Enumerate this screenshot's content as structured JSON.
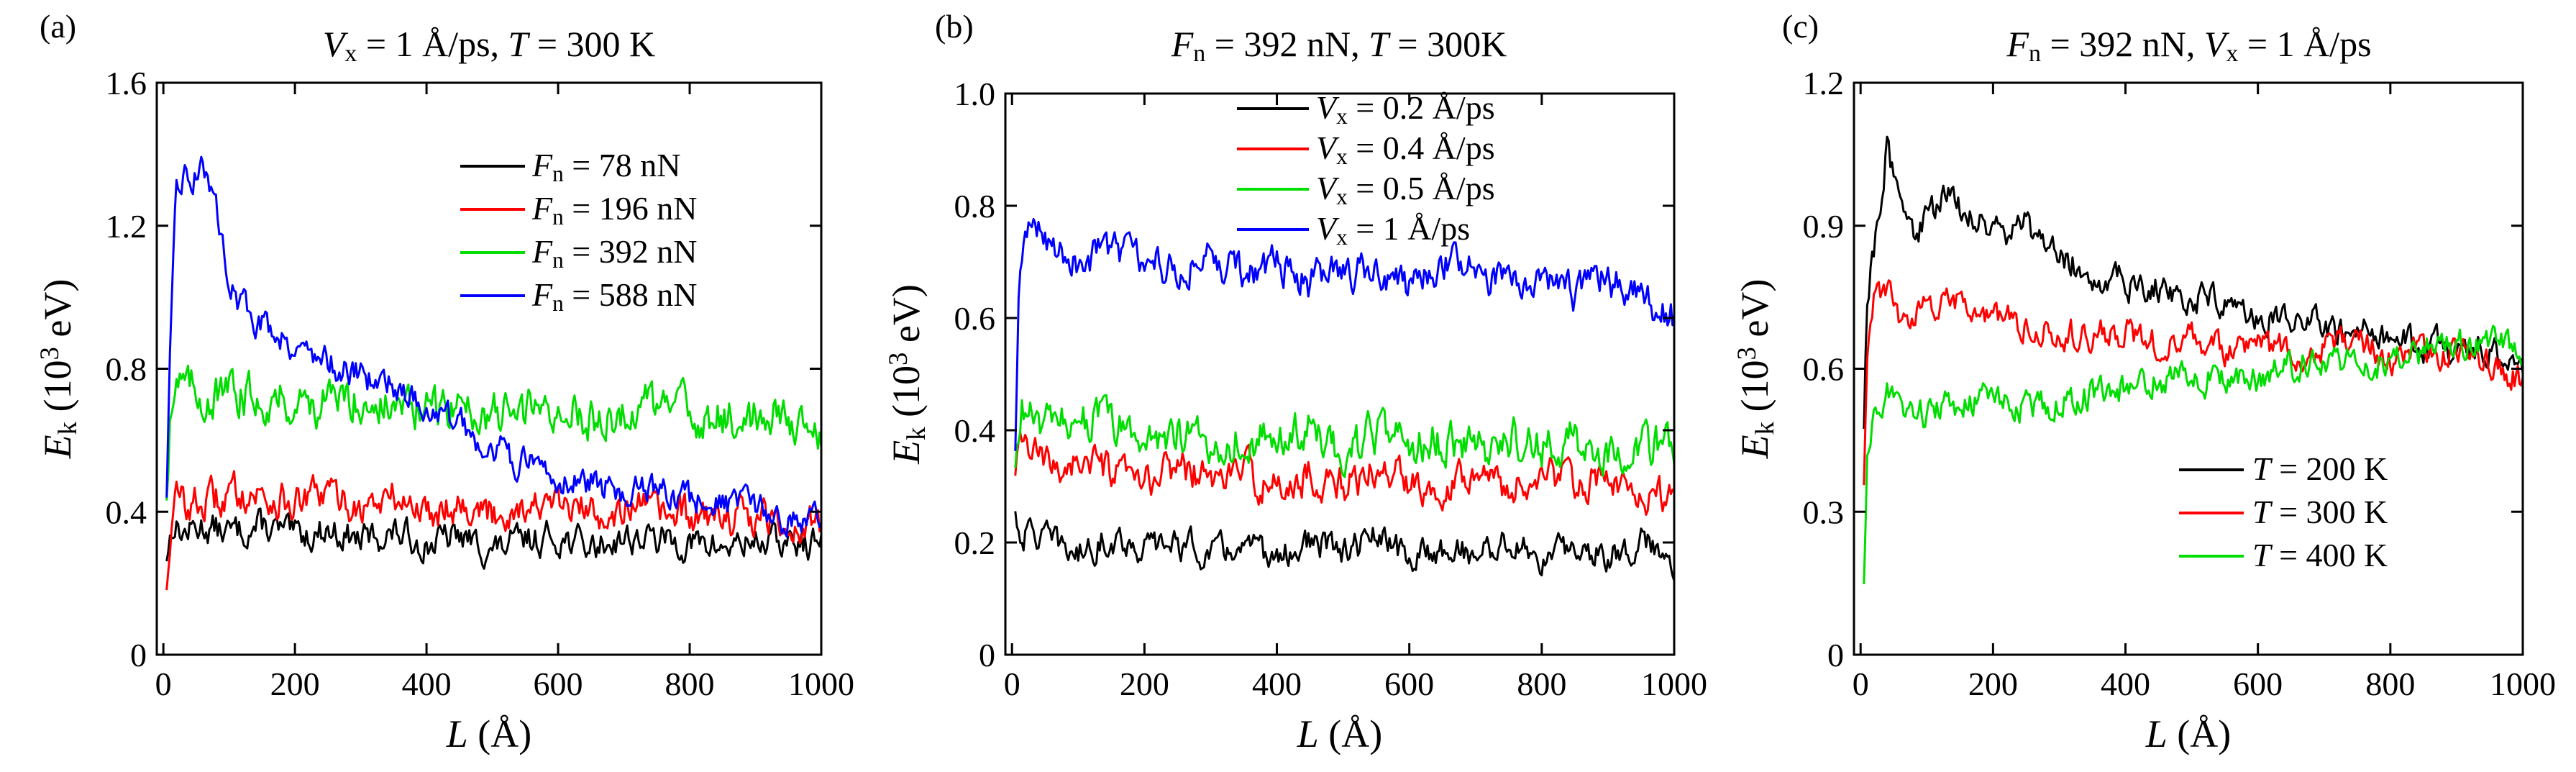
{
  "chart_data": [
    {
      "type": "line",
      "panel_label": "(a)",
      "title": {
        "parts": [
          {
            "t": "V",
            "i": true
          },
          {
            "t": "x",
            "sub": true
          },
          {
            "t": " = 1 Å/ps, "
          },
          {
            "t": "T",
            "i": true
          },
          {
            "t": " = 300 K"
          }
        ]
      },
      "xlabel": {
        "parts": [
          {
            "t": "L",
            "i": true
          },
          {
            "t": " (Å)"
          }
        ]
      },
      "ylabel": {
        "parts": [
          {
            "t": "E",
            "i": true
          },
          {
            "t": "k",
            "sub": true
          },
          {
            "t": " (10"
          },
          {
            "t": "3",
            "sup": true
          },
          {
            "t": " eV)"
          }
        ]
      },
      "xlim": [
        -10,
        1000
      ],
      "ylim": [
        0,
        1.6
      ],
      "xticks": [
        0,
        200,
        400,
        600,
        800,
        1000
      ],
      "yticks": [
        0,
        0.4,
        0.8,
        1.2,
        1.6
      ],
      "ytick_labels": [
        "0",
        "0.4",
        "0.8",
        "1.2",
        "1.6"
      ],
      "legend": {
        "position": "top-right",
        "entries": [
          {
            "parts": [
              {
                "t": "F",
                "i": true
              },
              {
                "t": "n",
                "sub": true
              },
              {
                "t": " = 78 nN"
              }
            ]
          },
          {
            "parts": [
              {
                "t": "F",
                "i": true
              },
              {
                "t": "n",
                "sub": true
              },
              {
                "t": " = 196 nN"
              }
            ]
          },
          {
            "parts": [
              {
                "t": "F",
                "i": true
              },
              {
                "t": "n",
                "sub": true
              },
              {
                "t": " = 392 nN"
              }
            ]
          },
          {
            "parts": [
              {
                "t": "F",
                "i": true
              },
              {
                "t": "n",
                "sub": true
              },
              {
                "t": " = 588 nN"
              }
            ]
          }
        ]
      },
      "series": [
        {
          "name": "Fn = 78 nN",
          "color": "#000000",
          "x": [
            5,
            15,
            30,
            60,
            100,
            150,
            200,
            250,
            300,
            350,
            400,
            450,
            500,
            550,
            600,
            650,
            700,
            750,
            800,
            850,
            900,
            950,
            1000
          ],
          "values": [
            0.28,
            0.37,
            0.34,
            0.36,
            0.34,
            0.36,
            0.33,
            0.35,
            0.32,
            0.34,
            0.31,
            0.33,
            0.29,
            0.32,
            0.33,
            0.3,
            0.33,
            0.32,
            0.31,
            0.3,
            0.32,
            0.31,
            0.31
          ]
        },
        {
          "name": "Fn = 196 nN",
          "color": "#ff0000",
          "x": [
            5,
            10,
            20,
            40,
            80,
            120,
            160,
            200,
            250,
            300,
            350,
            400,
            450,
            500,
            550,
            600,
            650,
            700,
            750,
            800,
            850,
            900,
            950,
            1000
          ],
          "values": [
            0.2,
            0.33,
            0.44,
            0.42,
            0.43,
            0.46,
            0.44,
            0.42,
            0.45,
            0.41,
            0.44,
            0.4,
            0.43,
            0.39,
            0.42,
            0.41,
            0.4,
            0.41,
            0.4,
            0.38,
            0.39,
            0.38,
            0.37,
            0.36
          ]
        },
        {
          "name": "Fn = 392 nN",
          "color": "#00dd00",
          "x": [
            5,
            10,
            20,
            40,
            80,
            120,
            160,
            200,
            250,
            300,
            350,
            400,
            450,
            500,
            550,
            600,
            650,
            700,
            750,
            800,
            850,
            900,
            950,
            1000
          ],
          "values": [
            0.45,
            0.68,
            0.78,
            0.74,
            0.72,
            0.73,
            0.72,
            0.71,
            0.7,
            0.72,
            0.69,
            0.68,
            0.7,
            0.67,
            0.68,
            0.69,
            0.66,
            0.68,
            0.7,
            0.67,
            0.66,
            0.66,
            0.67,
            0.63
          ]
        },
        {
          "name": "Fn = 588 nN",
          "color": "#0000ff",
          "x": [
            5,
            10,
            20,
            30,
            45,
            60,
            75,
            90,
            110,
            130,
            160,
            200,
            250,
            300,
            350,
            400,
            450,
            500,
            550,
            600,
            650,
            700,
            750,
            800,
            850,
            900,
            950,
            1000
          ],
          "values": [
            0.45,
            0.8,
            1.3,
            1.35,
            1.32,
            1.4,
            1.28,
            1.15,
            1.0,
            0.95,
            0.92,
            0.87,
            0.82,
            0.78,
            0.76,
            0.69,
            0.64,
            0.58,
            0.53,
            0.5,
            0.48,
            0.46,
            0.45,
            0.43,
            0.42,
            0.4,
            0.38,
            0.36
          ]
        }
      ]
    },
    {
      "type": "line",
      "panel_label": "(b)",
      "title": {
        "parts": [
          {
            "t": "F",
            "i": true
          },
          {
            "t": "n",
            "sub": true
          },
          {
            "t": " = 392 nN, "
          },
          {
            "t": "T",
            "i": true
          },
          {
            "t": " = 300K"
          }
        ]
      },
      "xlabel": {
        "parts": [
          {
            "t": "L",
            "i": true
          },
          {
            "t": " (Å)"
          }
        ]
      },
      "ylabel": {
        "parts": [
          {
            "t": "E",
            "i": true
          },
          {
            "t": "k",
            "sub": true
          },
          {
            "t": " (10"
          },
          {
            "t": "3",
            "sup": true
          },
          {
            "t": " eV)"
          }
        ]
      },
      "xlim": [
        -10,
        1000
      ],
      "ylim": [
        0,
        1.0
      ],
      "xticks": [
        0,
        200,
        400,
        600,
        800,
        1000
      ],
      "yticks": [
        0,
        0.2,
        0.4,
        0.6,
        0.8,
        1.0
      ],
      "ytick_labels": [
        "0",
        "0.2",
        "0.4",
        "0.6",
        "0.8",
        "1.0"
      ],
      "legend": {
        "position": "top-right",
        "entries": [
          {
            "parts": [
              {
                "t": "V",
                "i": true
              },
              {
                "t": "x",
                "sub": true
              },
              {
                "t": " = 0.2 Å/ps"
              }
            ]
          },
          {
            "parts": [
              {
                "t": "V",
                "i": true
              },
              {
                "t": "x",
                "sub": true
              },
              {
                "t": " = 0.4 Å/ps"
              }
            ]
          },
          {
            "parts": [
              {
                "t": "V",
                "i": true
              },
              {
                "t": "x",
                "sub": true
              },
              {
                "t": " = 0.5 Å/ps"
              }
            ]
          },
          {
            "parts": [
              {
                "t": "V",
                "i": true
              },
              {
                "t": "x",
                "sub": true
              },
              {
                "t": " = 1 Å/ps"
              }
            ]
          }
        ]
      },
      "series": [
        {
          "name": "Vx = 0.2 Å/ps",
          "color": "#000000",
          "x": [
            5,
            15,
            30,
            60,
            100,
            150,
            200,
            250,
            300,
            350,
            400,
            450,
            500,
            550,
            600,
            650,
            700,
            750,
            800,
            850,
            900,
            950,
            1000
          ],
          "values": [
            0.25,
            0.21,
            0.22,
            0.2,
            0.18,
            0.21,
            0.19,
            0.2,
            0.18,
            0.19,
            0.17,
            0.2,
            0.18,
            0.21,
            0.17,
            0.19,
            0.18,
            0.2,
            0.17,
            0.19,
            0.18,
            0.2,
            0.17
          ]
        },
        {
          "name": "Vx = 0.4 Å/ps",
          "color": "#ff0000",
          "x": [
            5,
            15,
            30,
            60,
            100,
            150,
            200,
            250,
            300,
            350,
            400,
            450,
            500,
            550,
            600,
            650,
            700,
            750,
            800,
            850,
            900,
            950,
            1000
          ],
          "values": [
            0.31,
            0.38,
            0.36,
            0.33,
            0.35,
            0.32,
            0.3,
            0.34,
            0.31,
            0.33,
            0.29,
            0.32,
            0.3,
            0.33,
            0.31,
            0.3,
            0.34,
            0.29,
            0.32,
            0.31,
            0.3,
            0.29,
            0.28
          ]
        },
        {
          "name": "Vx = 0.5 Å/ps",
          "color": "#00dd00",
          "x": [
            5,
            15,
            30,
            60,
            100,
            150,
            200,
            250,
            300,
            350,
            400,
            450,
            500,
            550,
            600,
            650,
            700,
            750,
            800,
            850,
            900,
            950,
            1000
          ],
          "values": [
            0.32,
            0.44,
            0.42,
            0.4,
            0.43,
            0.41,
            0.38,
            0.4,
            0.37,
            0.39,
            0.38,
            0.4,
            0.36,
            0.39,
            0.37,
            0.38,
            0.36,
            0.39,
            0.37,
            0.38,
            0.36,
            0.38,
            0.36
          ]
        },
        {
          "name": "Vx = 1 Å/ps",
          "color": "#0000ff",
          "x": [
            5,
            10,
            20,
            40,
            70,
            100,
            150,
            200,
            250,
            300,
            350,
            400,
            450,
            500,
            550,
            600,
            650,
            700,
            750,
            800,
            850,
            900,
            950,
            1000
          ],
          "values": [
            0.35,
            0.62,
            0.75,
            0.77,
            0.72,
            0.7,
            0.73,
            0.7,
            0.69,
            0.71,
            0.68,
            0.7,
            0.66,
            0.69,
            0.67,
            0.65,
            0.7,
            0.68,
            0.66,
            0.69,
            0.64,
            0.67,
            0.63,
            0.6
          ]
        }
      ]
    },
    {
      "type": "line",
      "panel_label": "(c)",
      "title": {
        "parts": [
          {
            "t": "F",
            "i": true
          },
          {
            "t": "n",
            "sub": true
          },
          {
            "t": " = 392 nN, "
          },
          {
            "t": "V",
            "i": true
          },
          {
            "t": "x",
            "sub": true
          },
          {
            "t": " = 1 Å/ps"
          }
        ]
      },
      "xlabel": {
        "parts": [
          {
            "t": "L",
            "i": true
          },
          {
            "t": " (Å)"
          }
        ]
      },
      "ylabel": {
        "parts": [
          {
            "t": "E",
            "i": true
          },
          {
            "t": "k",
            "sub": true
          },
          {
            "t": " (10"
          },
          {
            "t": "3",
            "sup": true
          },
          {
            "t": " eV)"
          }
        ]
      },
      "xlim": [
        -10,
        1000
      ],
      "ylim": [
        0,
        1.2
      ],
      "xticks": [
        0,
        200,
        400,
        600,
        800,
        1000
      ],
      "yticks": [
        0,
        0.3,
        0.6,
        0.9,
        1.2
      ],
      "ytick_labels": [
        "0",
        "0.3",
        "0.6",
        "0.9",
        "1.2"
      ],
      "legend": {
        "position": "bottom-right",
        "entries": [
          {
            "parts": [
              {
                "t": "T",
                "i": true
              },
              {
                "t": " = 200 K"
              }
            ]
          },
          {
            "parts": [
              {
                "t": "T",
                "i": true
              },
              {
                "t": " = 300 K"
              }
            ]
          },
          {
            "parts": [
              {
                "t": "T",
                "i": true
              },
              {
                "t": " = 400 K"
              }
            ]
          }
        ]
      },
      "series": [
        {
          "name": "T = 200 K",
          "color": "#000000",
          "x": [
            5,
            10,
            20,
            30,
            40,
            50,
            60,
            80,
            100,
            130,
            160,
            200,
            250,
            300,
            350,
            400,
            450,
            500,
            550,
            600,
            650,
            700,
            750,
            800,
            850,
            900,
            950,
            1000
          ],
          "values": [
            0.5,
            0.75,
            0.85,
            0.95,
            1.08,
            1.0,
            0.95,
            0.88,
            0.92,
            0.96,
            0.93,
            0.88,
            0.9,
            0.84,
            0.8,
            0.78,
            0.77,
            0.75,
            0.74,
            0.72,
            0.7,
            0.69,
            0.68,
            0.66,
            0.65,
            0.64,
            0.63,
            0.6
          ]
        },
        {
          "name": "T = 300 K",
          "color": "#ff0000",
          "x": [
            5,
            10,
            20,
            40,
            60,
            100,
            150,
            200,
            250,
            300,
            350,
            400,
            450,
            500,
            550,
            600,
            650,
            700,
            750,
            800,
            850,
            900,
            950,
            1000
          ],
          "values": [
            0.38,
            0.62,
            0.74,
            0.76,
            0.7,
            0.72,
            0.74,
            0.7,
            0.69,
            0.68,
            0.67,
            0.68,
            0.65,
            0.66,
            0.64,
            0.65,
            0.63,
            0.64,
            0.66,
            0.62,
            0.63,
            0.64,
            0.6,
            0.58
          ]
        },
        {
          "name": "T = 400 K",
          "color": "#00dd00",
          "x": [
            5,
            10,
            20,
            40,
            60,
            100,
            150,
            200,
            250,
            300,
            350,
            400,
            450,
            500,
            550,
            600,
            650,
            700,
            750,
            800,
            850,
            900,
            950,
            1000
          ],
          "values": [
            0.17,
            0.4,
            0.5,
            0.55,
            0.52,
            0.5,
            0.53,
            0.54,
            0.52,
            0.53,
            0.55,
            0.56,
            0.58,
            0.57,
            0.59,
            0.58,
            0.6,
            0.62,
            0.61,
            0.62,
            0.64,
            0.65,
            0.66,
            0.65
          ]
        }
      ]
    }
  ]
}
